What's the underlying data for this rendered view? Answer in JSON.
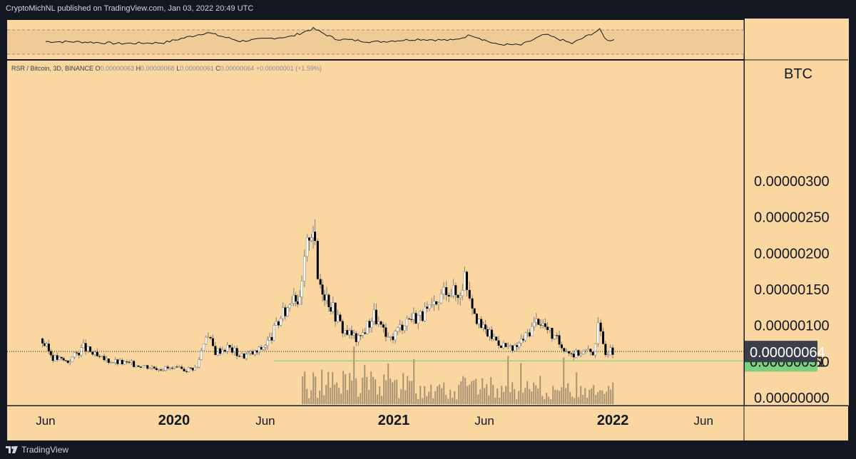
{
  "header": {
    "publisher_line": "CryptoMichNL published on TradingView.com, Jan 03, 2022 20:49 UTC"
  },
  "legend": {
    "symbol": "RSR / Bitcoin, 3D, BINANCE",
    "o_label": "O",
    "o_value": "0.00000063",
    "h_label": "H",
    "h_value": "0.00000068",
    "l_label": "L",
    "l_value": "0.00000061",
    "c_label": "C",
    "c_value": "0.00000064",
    "change": "+0.00000001 (+1.59%)"
  },
  "footer": {
    "brand": "TradingView"
  },
  "colors": {
    "pane_bg": "#fad7a0",
    "frame": "#131722",
    "candle_up": "#ffffff",
    "candle_down": "#000000",
    "wick": "#808080",
    "volume": "#a89270",
    "price_badge": "#3b3f49",
    "support_badge": "#7ed07e",
    "support_line": "#7ed07e"
  },
  "chart_data": {
    "type": "candlestick",
    "pair": "RSR / Bitcoin",
    "timeframe": "3D",
    "exchange": "BINANCE",
    "currency_unit": "BTC",
    "x_ticks": [
      "Jun",
      "2020",
      "Jun",
      "2021",
      "Jun",
      "2022",
      "Jun"
    ],
    "y_ticks": [
      "0.00000000",
      "0.00000050",
      "0.00000100",
      "0.00000150",
      "0.00000200",
      "0.00000250",
      "0.00000300"
    ],
    "ylim": [
      0,
      3e-06
    ],
    "last_price": "0.00000064",
    "horizontal_line_level": "0.00000051",
    "series": [
      {
        "name": "RSR / Bitcoin",
        "points": [
          {
            "date": "2019-05-25",
            "close": 8.2e-07
          },
          {
            "date": "2019-06-15",
            "close": 5.6e-07
          },
          {
            "date": "2019-07-10",
            "close": 5e-07
          },
          {
            "date": "2019-08-05",
            "close": 7e-07
          },
          {
            "date": "2019-09-01",
            "close": 5.4e-07
          },
          {
            "date": "2019-10-01",
            "close": 4.9e-07
          },
          {
            "date": "2019-11-01",
            "close": 4.6e-07
          },
          {
            "date": "2019-12-01",
            "close": 4.2e-07
          },
          {
            "date": "2019-12-31",
            "close": 4e-07
          },
          {
            "date": "2020-01-20",
            "close": 3.9e-07
          },
          {
            "date": "2020-02-10",
            "close": 4.2e-07
          },
          {
            "date": "2020-02-25",
            "close": 9e-07
          },
          {
            "date": "2020-03-12",
            "close": 6.4e-07
          },
          {
            "date": "2020-04-01",
            "close": 7e-07
          },
          {
            "date": "2020-04-25",
            "close": 5.8e-07
          },
          {
            "date": "2020-05-20",
            "close": 6.3e-07
          },
          {
            "date": "2020-06-10",
            "close": 8e-07
          },
          {
            "date": "2020-06-25",
            "close": 1.05e-06
          },
          {
            "date": "2020-07-10",
            "close": 1.25e-06
          },
          {
            "date": "2020-07-20",
            "close": 1.5e-06
          },
          {
            "date": "2020-07-30",
            "close": 1.3e-06
          },
          {
            "date": "2020-08-08",
            "close": 1.85e-06
          },
          {
            "date": "2020-08-15",
            "close": 2.32e-06
          },
          {
            "date": "2020-08-21",
            "close": 2.4e-06
          },
          {
            "date": "2020-08-30",
            "close": 1.65e-06
          },
          {
            "date": "2020-09-20",
            "close": 1.3e-06
          },
          {
            "date": "2020-10-10",
            "close": 9.5e-07
          },
          {
            "date": "2020-11-05",
            "close": 8e-07
          },
          {
            "date": "2020-12-01",
            "close": 1.15e-06
          },
          {
            "date": "2020-12-25",
            "close": 7.8e-07
          },
          {
            "date": "2021-01-25",
            "close": 1.1e-06
          },
          {
            "date": "2021-02-20",
            "close": 1.15e-06
          },
          {
            "date": "2021-03-15",
            "close": 1.25e-06
          },
          {
            "date": "2021-04-01",
            "close": 1.55e-06
          },
          {
            "date": "2021-04-20",
            "close": 1.4e-06
          },
          {
            "date": "2021-05-01",
            "close": 1.7e-06
          },
          {
            "date": "2021-05-10",
            "close": 1.45e-06
          },
          {
            "date": "2021-05-25",
            "close": 1e-06
          },
          {
            "date": "2021-06-15",
            "close": 8.5e-07
          },
          {
            "date": "2021-07-01",
            "close": 7.5e-07
          },
          {
            "date": "2021-07-20",
            "close": 6.5e-07
          },
          {
            "date": "2021-08-10",
            "close": 8.5e-07
          },
          {
            "date": "2021-09-01",
            "close": 1.1e-06
          },
          {
            "date": "2021-09-20",
            "close": 9e-07
          },
          {
            "date": "2021-10-10",
            "close": 7.2e-07
          },
          {
            "date": "2021-10-30",
            "close": 6e-07
          },
          {
            "date": "2021-11-15",
            "close": 6.5e-07
          },
          {
            "date": "2021-12-01",
            "close": 6.3e-07
          },
          {
            "date": "2021-12-10",
            "close": 9.7e-07
          },
          {
            "date": "2021-12-22",
            "close": 6.5e-07
          },
          {
            "date": "2022-01-03",
            "close": 6.4e-07
          }
        ]
      }
    ],
    "volume": {
      "visible": true,
      "start_date": "2020-08-01",
      "peak_date": "2020-10-25"
    },
    "rsi_pane": {
      "points": [
        [
          "2019-06-01",
          45
        ],
        [
          "2019-08-01",
          44
        ],
        [
          "2019-10-01",
          40
        ],
        [
          "2019-12-15",
          42
        ],
        [
          "2020-02-25",
          68
        ],
        [
          "2020-04-20",
          46
        ],
        [
          "2020-07-15",
          58
        ],
        [
          "2020-08-20",
          78
        ],
        [
          "2020-09-25",
          52
        ],
        [
          "2020-12-01",
          44
        ],
        [
          "2021-02-10",
          51
        ],
        [
          "2021-04-10",
          48
        ],
        [
          "2021-05-10",
          62
        ],
        [
          "2021-06-20",
          38
        ],
        [
          "2021-08-01",
          36
        ],
        [
          "2021-09-10",
          63
        ],
        [
          "2021-10-25",
          40
        ],
        [
          "2021-12-10",
          75
        ],
        [
          "2021-12-22",
          48
        ],
        [
          "2022-01-03",
          50
        ]
      ]
    }
  }
}
